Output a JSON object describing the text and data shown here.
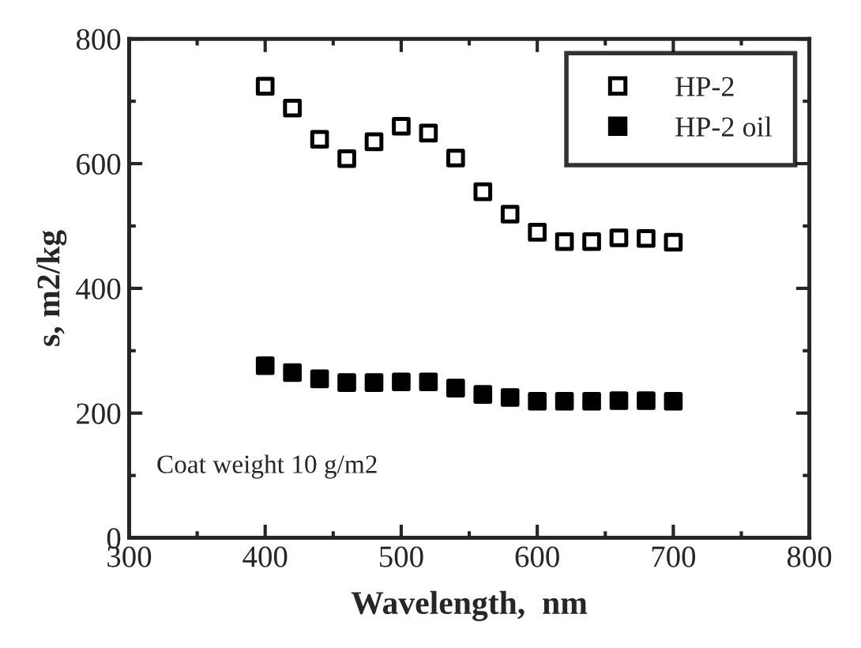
{
  "chart_data": {
    "type": "scatter",
    "xlabel": "Wavelength,  nm",
    "ylabel": "s, m2/kg",
    "x": [
      400,
      420,
      440,
      460,
      480,
      500,
      520,
      540,
      560,
      580,
      600,
      620,
      640,
      660,
      680,
      700
    ],
    "series": [
      {
        "name": "HP-2",
        "color": "#000000",
        "marker": "square-open",
        "values": [
          724,
          689,
          639,
          608,
          635,
          660,
          649,
          609,
          555,
          519,
          490,
          475,
          475,
          481,
          480,
          474
        ]
      },
      {
        "name": "HP-2 oil",
        "color": "#000000",
        "marker": "square",
        "values": [
          276,
          265,
          255,
          249,
          249,
          250,
          250,
          240,
          230,
          225,
          219,
          219,
          219,
          220,
          220,
          219
        ]
      }
    ],
    "xlim": [
      300,
      800
    ],
    "xticks": [
      300,
      400,
      500,
      600,
      700,
      800
    ],
    "ylim": [
      0,
      800
    ],
    "yticks": [
      0,
      200,
      400,
      600,
      800
    ],
    "annotations": [
      "Coat weight 10 g/m2"
    ],
    "legend": "top right",
    "grid": false
  }
}
